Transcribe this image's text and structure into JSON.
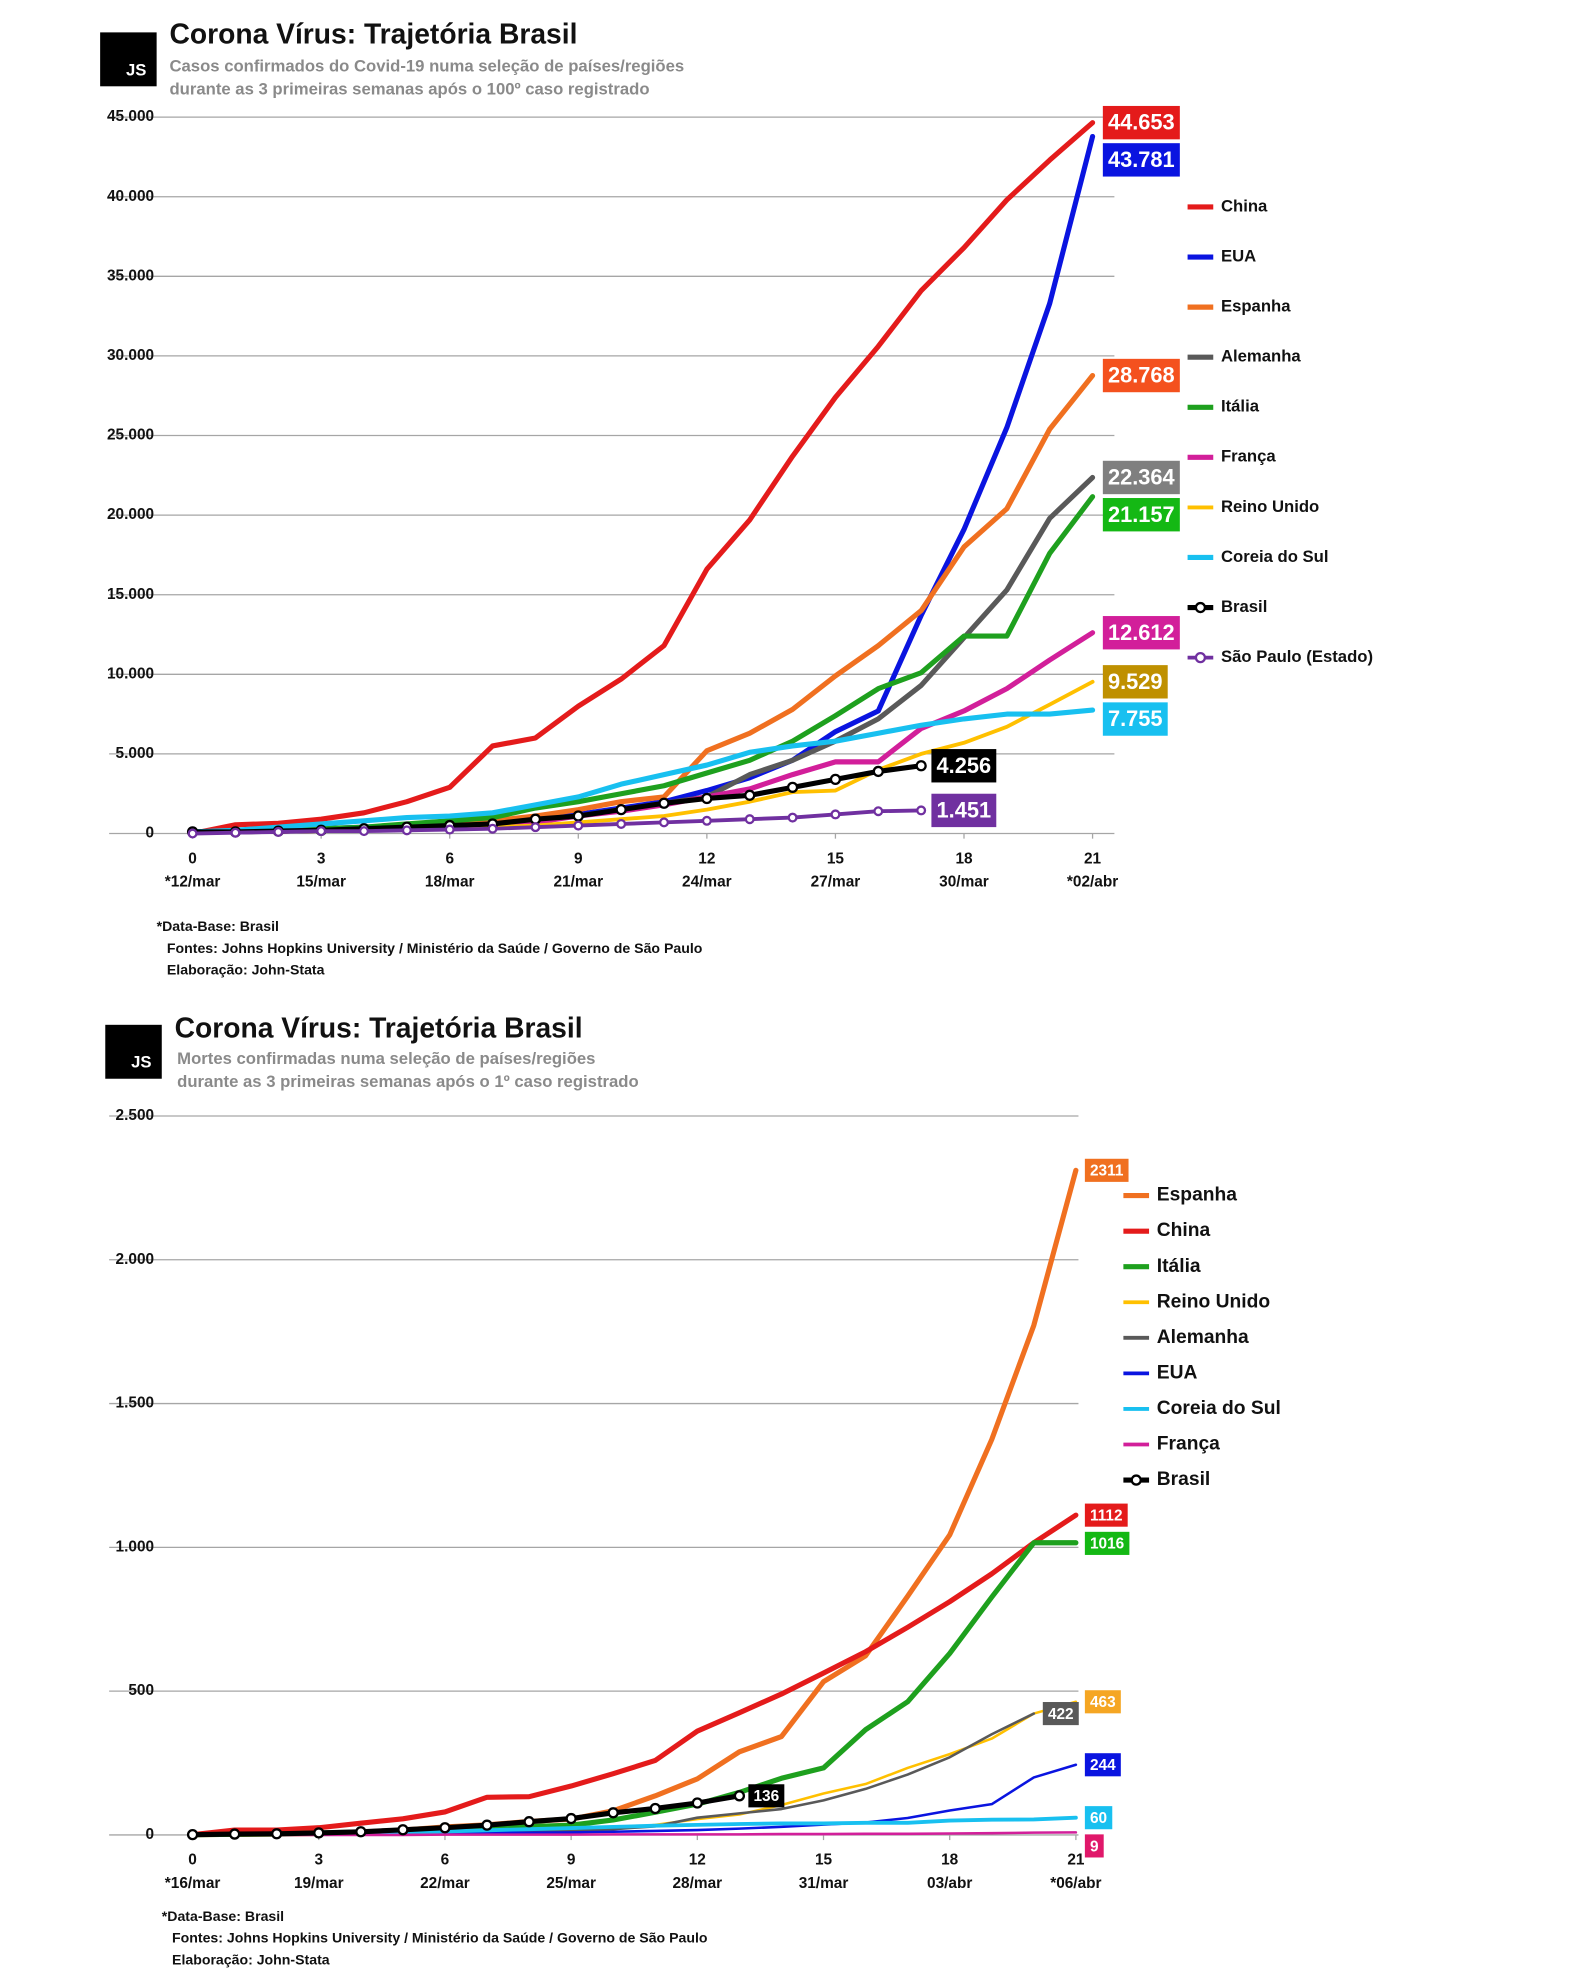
{
  "chart_data": [
    {
      "type": "line",
      "logo": "JS",
      "title": "Corona Vírus: Trajetória Brasil",
      "subtitle": [
        "Casos confirmados do Covid-19 numa seleção de países/regiões",
        "durante as 3 primeiras semanas após o 100º caso registrado"
      ],
      "footnotes": [
        "*Data-Base: Brasil",
        "Fontes: Johns Hopkins University / Ministério da Saúde / Governo de São Paulo",
        "Elaboração: John-Stata"
      ],
      "x": [
        0,
        1,
        2,
        3,
        4,
        5,
        6,
        7,
        8,
        9,
        10,
        11,
        12,
        13,
        14,
        15,
        16,
        17,
        18,
        19,
        20,
        21
      ],
      "xlim": [
        0,
        21
      ],
      "xticks": [
        0,
        3,
        6,
        9,
        12,
        15,
        18,
        21
      ],
      "xtick_dates": [
        "*12/mar",
        "15/mar",
        "18/mar",
        "21/mar",
        "24/mar",
        "27/mar",
        "30/mar",
        "*02/abr"
      ],
      "ylim": [
        0,
        45000
      ],
      "yticks": [
        0,
        {
          "value": 5000,
          "label": "5.000"
        },
        {
          "value": 10000,
          "label": "10.000"
        },
        {
          "value": 15000,
          "label": "15.000"
        },
        {
          "value": 20000,
          "label": "20.000"
        },
        {
          "value": 25000,
          "label": "25.000"
        },
        {
          "value": 30000,
          "label": "30.000"
        },
        {
          "value": 35000,
          "label": "35.000"
        },
        {
          "value": 40000,
          "label": "40.000"
        },
        {
          "value": 45000,
          "label": "45.000"
        }
      ],
      "grid": true,
      "legend": "right",
      "series": [
        {
          "name": "China",
          "color": "#e41b1b",
          "line_width": 4,
          "value_label": "44.653",
          "values": [
            0,
            550,
            640,
            900,
            1300,
            2000,
            2900,
            5500,
            6000,
            8000,
            9700,
            11800,
            16600,
            19700,
            23700,
            27400,
            30600,
            34100,
            36800,
            39800,
            42300,
            44653
          ]
        },
        {
          "name": "EUA",
          "color": "#0a14e0",
          "line_width": 4,
          "value_label": "43.781",
          "values": [
            100,
            150,
            200,
            300,
            400,
            500,
            600,
            700,
            900,
            1200,
            1600,
            2000,
            2700,
            3500,
            4600,
            6400,
            7700,
            13700,
            19100,
            25500,
            33300,
            43781
          ]
        },
        {
          "name": "Espanha",
          "color": "#f07020",
          "label_color": "#f4511e",
          "line_width": 4,
          "value_label": "28.768",
          "values": [
            100,
            120,
            150,
            200,
            250,
            400,
            600,
            800,
            1100,
            1500,
            2000,
            2300,
            5200,
            6300,
            7800,
            9900,
            11800,
            14000,
            18000,
            20400,
            25400,
            28768
          ]
        },
        {
          "name": "Alemanha",
          "color": "#595959",
          "label_color": "#7f7f7f",
          "line_width": 4,
          "value_label": "22.364",
          "values": [
            100,
            120,
            150,
            200,
            250,
            350,
            450,
            600,
            800,
            1100,
            1500,
            1900,
            2300,
            3700,
            4600,
            5800,
            7200,
            9300,
            12300,
            15300,
            19800,
            22364
          ]
        },
        {
          "name": "Itália",
          "color": "#1ea01e",
          "label_color": "#14b814",
          "line_width": 4,
          "value_label": "21.157",
          "values": [
            100,
            150,
            200,
            300,
            400,
            600,
            800,
            1000,
            1600,
            2000,
            2500,
            3000,
            3800,
            4600,
            5800,
            7400,
            9100,
            10100,
            12400,
            12400,
            17600,
            21157
          ]
        },
        {
          "name": "França",
          "color": "#d21f9a",
          "line_width": 4,
          "value_label": "12.612",
          "values": [
            100,
            120,
            150,
            200,
            250,
            300,
            400,
            500,
            700,
            1100,
            1400,
            1800,
            2300,
            2800,
            3700,
            4500,
            4500,
            6600,
            7700,
            9100,
            10900,
            12612
          ]
        },
        {
          "name": "Reino Unido",
          "color": "#ffc000",
          "label_color": "#bf9000",
          "line_width": 3,
          "value_label": "9.529",
          "values": [
            100,
            110,
            120,
            150,
            200,
            250,
            300,
            400,
            500,
            700,
            900,
            1100,
            1500,
            2000,
            2600,
            2700,
            4000,
            5000,
            5700,
            6700,
            8100,
            9529
          ]
        },
        {
          "name": "Coreia do Sul",
          "color": "#18c0f0",
          "line_width": 4,
          "value_label": "7.755",
          "values": [
            100,
            200,
            400,
            600,
            800,
            1000,
            1100,
            1300,
            1800,
            2300,
            3100,
            3700,
            4300,
            5100,
            5500,
            5800,
            6300,
            6800,
            7200,
            7500,
            7500,
            7755
          ]
        },
        {
          "name": "Brasil",
          "color": "#000000",
          "line_width": 4,
          "marker": true,
          "value_label": "4.256",
          "values": [
            100,
            100,
            150,
            200,
            300,
            400,
            500,
            600,
            900,
            1100,
            1500,
            1900,
            2200,
            2400,
            2900,
            3400,
            3900,
            4256,
            null,
            null,
            null,
            null
          ]
        },
        {
          "name": "São Paulo (Estado)",
          "color": "#7030a0",
          "line_width": 3,
          "marker": true,
          "value_label": "1.451",
          "values": [
            0,
            50,
            100,
            150,
            150,
            200,
            250,
            300,
            400,
            500,
            600,
            700,
            800,
            900,
            1000,
            1200,
            1400,
            1451,
            null,
            null,
            null,
            null
          ]
        }
      ]
    },
    {
      "type": "line",
      "logo": "JS",
      "title": "Corona Vírus: Trajetória Brasil",
      "subtitle": [
        "Mortes confirmadas numa seleção de países/regiões",
        "durante as 3 primeiras semanas após o 1º caso registrado"
      ],
      "footnotes": [
        "*Data-Base: Brasil",
        "Fontes: Johns Hopkins University / Ministério da Saúde / Governo de São Paulo",
        "Elaboração: John-Stata"
      ],
      "x": [
        0,
        1,
        2,
        3,
        4,
        5,
        6,
        7,
        8,
        9,
        10,
        11,
        12,
        13,
        14,
        15,
        16,
        17,
        18,
        19,
        20,
        21
      ],
      "xlim": [
        0,
        21
      ],
      "xticks": [
        0,
        3,
        6,
        9,
        12,
        15,
        18,
        21
      ],
      "xtick_dates": [
        "*16/mar",
        "19/mar",
        "22/mar",
        "25/mar",
        "28/mar",
        "31/mar",
        "03/abr",
        "*06/abr"
      ],
      "ylim": [
        0,
        2500
      ],
      "yticks": [
        0,
        500,
        {
          "value": 1000,
          "label": "1.000"
        },
        {
          "value": 1500,
          "label": "1.500"
        },
        {
          "value": 2000,
          "label": "2.000"
        },
        {
          "value": 2500,
          "label": "2.500"
        }
      ],
      "grid": true,
      "legend": "right",
      "series": [
        {
          "name": "Espanha",
          "color": "#f07020",
          "line_width": 4,
          "values": [
            1,
            2,
            3,
            5,
            10,
            17,
            28,
            35,
            47,
            55,
            84,
            136,
            195,
            289,
            342,
            533,
            623,
            830,
            1043,
            1375,
            1772,
            2311
          ]
        },
        {
          "name": "China",
          "color": "#e41b1b",
          "line_width": 4,
          "values": [
            1,
            17,
            17,
            25,
            41,
            56,
            80,
            131,
            133,
            170,
            213,
            259,
            361,
            425,
            490,
            563,
            637,
            722,
            811,
            908,
            1016,
            1112
          ]
        },
        {
          "name": "Itália",
          "color": "#1ea01e",
          "label_color": "#14b814",
          "line_width": 4,
          "values": [
            1,
            2,
            3,
            7,
            10,
            12,
            17,
            21,
            29,
            34,
            52,
            79,
            107,
            148,
            197,
            233,
            366,
            463,
            631,
            827,
            1016,
            1016
          ]
        },
        {
          "name": "Reino Unido",
          "color": "#ffc000",
          "label_color": "#f5a623",
          "line_width": 2,
          "values": [
            1,
            2,
            2,
            3,
            4,
            6,
            8,
            10,
            12,
            15,
            20,
            35,
            55,
            71,
            104,
            144,
            177,
            233,
            281,
            335,
            422,
            463
          ]
        },
        {
          "name": "Alemanha",
          "color": "#595959",
          "label_color": "#595959",
          "line_width": 2,
          "values": [
            2,
            2,
            3,
            3,
            4,
            5,
            7,
            9,
            11,
            13,
            20,
            30,
            60,
            75,
            90,
            120,
            160,
            210,
            270,
            350,
            422,
            null
          ]
        },
        {
          "name": "EUA",
          "color": "#0a14e0",
          "line_width": 2,
          "values": [
            1,
            1,
            2,
            3,
            4,
            5,
            6,
            7,
            8,
            9,
            11,
            14,
            17,
            22,
            28,
            36,
            43,
            59,
            85,
            107,
            200,
            244
          ]
        },
        {
          "name": "Coreia do Sul",
          "color": "#18c0f0",
          "line_width": 3,
          "values": [
            1,
            2,
            3,
            6,
            8,
            10,
            12,
            16,
            20,
            24,
            28,
            32,
            35,
            38,
            40,
            40,
            42,
            42,
            50,
            53,
            54,
            60
          ]
        },
        {
          "name": "França",
          "color": "#d21f9a",
          "label_color": "#e0186a",
          "line_width": 2,
          "values": [
            0,
            0,
            0,
            0,
            0,
            0,
            1,
            1,
            1,
            1,
            2,
            2,
            2,
            2,
            3,
            3,
            4,
            4,
            5,
            6,
            8,
            9
          ]
        },
        {
          "name": "Brasil",
          "color": "#000000",
          "line_width": 4,
          "marker": true,
          "values": [
            1,
            3,
            4,
            7,
            11,
            18,
            25,
            34,
            46,
            57,
            77,
            92,
            111,
            136,
            null,
            null,
            null,
            null,
            null,
            null,
            null,
            null
          ]
        }
      ]
    }
  ]
}
